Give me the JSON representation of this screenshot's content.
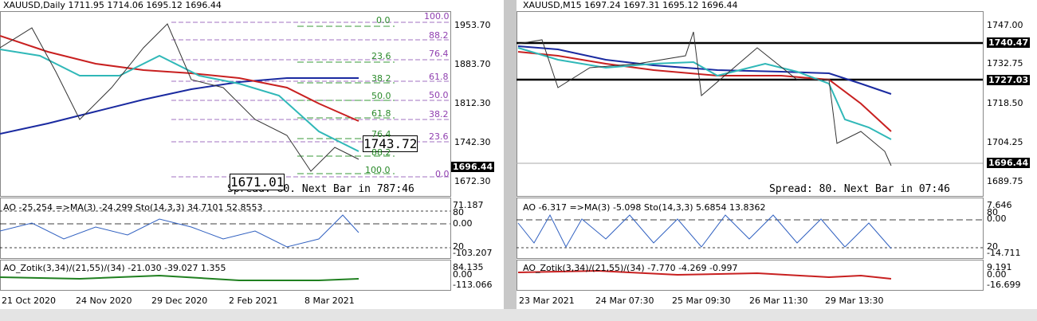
{
  "left": {
    "header": "XAUUSD,Daily  1711.95 1714.06 1695.12 1696.44",
    "price_axis": [
      "1953.70",
      "1883.70",
      "1812.30",
      "1742.30",
      "1672.30"
    ],
    "current_price": "1696.44",
    "fib_green": [
      "0.0",
      "23.6",
      "38.2",
      "50.0",
      "61.8",
      "76.4",
      "88.2",
      "100.0"
    ],
    "fib_purple": [
      "100.0",
      "88.2",
      "76.4",
      "61.8",
      "50.0",
      "38.2",
      "23.6",
      "0.0"
    ],
    "box_labels": [
      "1743.72",
      "1671.01"
    ],
    "status": "Spread: 80. Next Bar in 787:46",
    "ao_text": "AO -25.254 =>MA(3) -24.299 Sto(14,3,3) 34.7101 52.8553",
    "ao_axis": [
      "71.187",
      "80",
      "0.00",
      "20",
      "-103.207"
    ],
    "zotik_text": "AO_Zotik(3,34)/(21,55)/(34) -21.030 -39.027 1.355",
    "zotik_axis": [
      "84.135",
      "0.00",
      "-113.066"
    ],
    "dates": [
      "21 Oct 2020",
      "24 Nov 2020",
      "29 Dec 2020",
      "2 Feb 2021",
      "8 Mar 2021"
    ]
  },
  "right": {
    "header": "XAUUSD,M15  1697.24 1697.31 1695.12 1696.44",
    "price_axis": [
      "1747.00",
      "1740.47",
      "1732.75",
      "1727.03",
      "1718.50",
      "1704.25",
      "1696.44",
      "1689.75"
    ],
    "status": "Spread: 80. Next Bar in 07:46",
    "ao_text": "AO -6.317 =>MA(3) -5.098 Sto(14,3,3) 5.6854 13.8362",
    "ao_axis": [
      "7.646",
      "80",
      "0.00",
      "20",
      "-14.711"
    ],
    "zotik_text": "AO_Zotik(3,34)/(21,55)/(34) -7.770 -4.269 -0.997",
    "zotik_axis": [
      "9.191",
      "0.00",
      "-16.699"
    ],
    "dates": [
      "23 Mar 2021",
      "24 Mar 07:30",
      "25 Mar 09:30",
      "26 Mar 11:30",
      "29 Mar 13:30"
    ]
  }
}
